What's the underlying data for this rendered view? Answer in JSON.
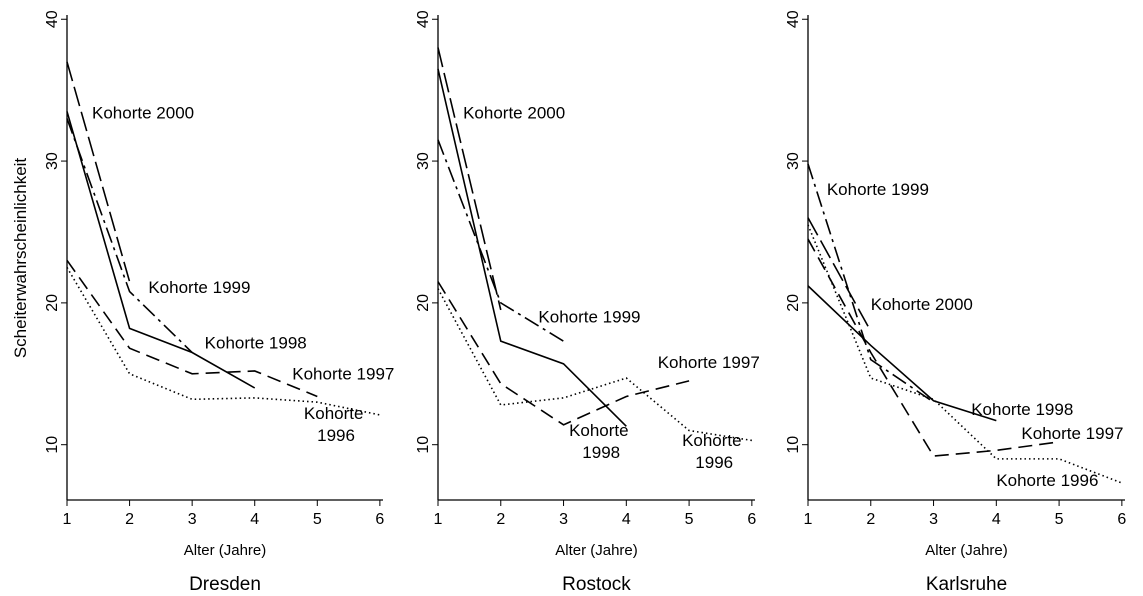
{
  "chart_data": [
    {
      "type": "line",
      "title": "Dresden",
      "xlabel": "Alter (Jahre)",
      "ylabel": "Scheiterwahrscheinlichkeit",
      "x": [
        1,
        2,
        3,
        4,
        5,
        6
      ],
      "xlim": [
        1,
        6.05
      ],
      "xticks": [
        1,
        2,
        3,
        4,
        5,
        6
      ],
      "ylim": [
        6.1,
        40.3
      ],
      "yticks": [
        10,
        20,
        30,
        40
      ],
      "series": [
        {
          "name": "Kohorte 2000",
          "color": "#000000",
          "style": "longdash",
          "values": [
            37,
            21.5,
            null,
            null,
            null,
            null
          ]
        },
        {
          "name": "Kohorte 1999",
          "color": "#000000",
          "style": "dashdot",
          "values": [
            33,
            20.8,
            16.5,
            null,
            null,
            null
          ]
        },
        {
          "name": "Kohorte 1998",
          "color": "#000000",
          "style": "solid",
          "values": [
            33.5,
            18.2,
            16.5,
            14,
            null,
            null
          ]
        },
        {
          "name": "Kohorte 1997",
          "color": "#000000",
          "style": "dash",
          "values": [
            23,
            16.8,
            15,
            15.2,
            13.4,
            null
          ]
        },
        {
          "name": "Kohorte 1996",
          "color": "#000000",
          "style": "dot",
          "values": [
            22.5,
            15,
            13.2,
            13.3,
            13,
            12.1
          ]
        }
      ]
    },
    {
      "type": "line",
      "title": "Rostock",
      "xlabel": "Alter (Jahre)",
      "x": [
        1,
        2,
        3,
        4,
        5,
        6
      ],
      "xlim": [
        1,
        6.05
      ],
      "xticks": [
        1,
        2,
        3,
        4,
        5,
        6
      ],
      "ylim": [
        6.1,
        40.3
      ],
      "yticks": [
        10,
        20,
        30,
        40
      ],
      "series": [
        {
          "name": "Kohorte 2000",
          "color": "#000000",
          "style": "longdash",
          "values": [
            38,
            19.5,
            null,
            null,
            null,
            null
          ]
        },
        {
          "name": "Kohorte 1999",
          "color": "#000000",
          "style": "dashdot",
          "values": [
            31.5,
            20,
            17.3,
            null,
            null,
            null
          ]
        },
        {
          "name": "Kohorte 1998",
          "color": "#000000",
          "style": "solid",
          "values": [
            36.5,
            17.3,
            15.7,
            11.3,
            null,
            null
          ]
        },
        {
          "name": "Kohorte 1997",
          "color": "#000000",
          "style": "dash",
          "values": [
            21.5,
            14.3,
            11.4,
            13.4,
            14.5,
            null
          ]
        },
        {
          "name": "Kohorte 1996",
          "color": "#000000",
          "style": "dot",
          "values": [
            21,
            12.8,
            13.3,
            14.7,
            11,
            10.3
          ]
        }
      ]
    },
    {
      "type": "line",
      "title": "Karlsruhe",
      "xlabel": "Alter (Jahre)",
      "x": [
        1,
        2,
        3,
        4,
        5,
        6
      ],
      "xlim": [
        1,
        6.05
      ],
      "xticks": [
        1,
        2,
        3,
        4,
        5,
        6
      ],
      "ylim": [
        6.1,
        40.3
      ],
      "yticks": [
        10,
        20,
        30,
        40
      ],
      "series": [
        {
          "name": "Kohorte 2000",
          "color": "#000000",
          "style": "longdash",
          "values": [
            26,
            18,
            null,
            null,
            null,
            null
          ]
        },
        {
          "name": "Kohorte 1999",
          "color": "#000000",
          "style": "dashdot",
          "values": [
            29.8,
            16,
            13,
            null,
            null,
            null
          ]
        },
        {
          "name": "Kohorte 1998",
          "color": "#000000",
          "style": "solid",
          "values": [
            21.2,
            17,
            13.1,
            11.7,
            null,
            null
          ]
        },
        {
          "name": "Kohorte 1997",
          "color": "#000000",
          "style": "dash",
          "values": [
            24.5,
            16.5,
            9.2,
            9.6,
            10.2,
            null
          ]
        },
        {
          "name": "Kohorte 1996",
          "color": "#000000",
          "style": "dot",
          "values": [
            25.5,
            14.7,
            13.2,
            9,
            9,
            7.3
          ]
        }
      ]
    }
  ]
}
